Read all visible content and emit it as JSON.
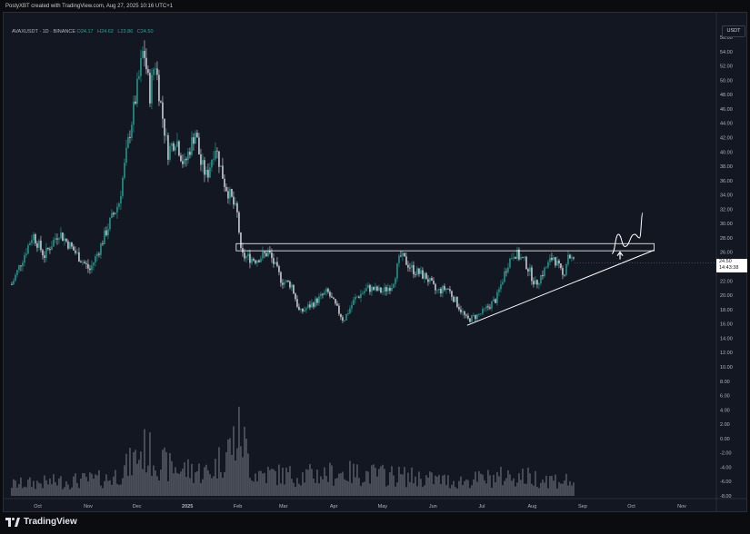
{
  "header": {
    "attribution": "PostyXBT created with TradingView.com, Aug 27, 2025 10:16 UTC+1"
  },
  "legend": {
    "symbol": "AVAXUSDT · 1D · BINANCE",
    "open_label": "O",
    "open": "24.17",
    "high_label": "H",
    "high": "24.62",
    "low_label": "L",
    "low": "23.86",
    "close_label": "C",
    "close": "24.50"
  },
  "currency": "USDT",
  "price_tag": {
    "price": "24.50",
    "countdown": "14:43:38"
  },
  "footer": {
    "brand": "TradingView"
  },
  "colors": {
    "background": "#131722",
    "up_candle": "#26a69a",
    "down_candle": "#e0e3eb",
    "volume": "#b2b5be",
    "pattern_lines": "#ffffff"
  },
  "icons": {
    "logo": "tradingview-logo-icon",
    "arrow": "up-arrow-icon",
    "projection": "breakout-projection-path"
  },
  "chart_data": {
    "type": "candlestick",
    "x_tick_labels": [
      "Oct",
      "Nov",
      "Dec",
      "2025",
      "Feb",
      "Mar",
      "Apr",
      "May",
      "Jun",
      "Jul",
      "Aug",
      "Sep",
      "Oct",
      "Nov"
    ],
    "y_tick_labels": [
      "56.00",
      "54.00",
      "52.00",
      "50.00",
      "48.00",
      "46.00",
      "44.00",
      "42.00",
      "40.00",
      "38.00",
      "36.00",
      "34.00",
      "32.00",
      "30.00",
      "28.00",
      "26.00",
      "24.00",
      "22.00",
      "20.00",
      "18.00",
      "16.00",
      "14.00",
      "12.00",
      "10.00",
      "8.00",
      "6.00",
      "4.00",
      "2.00",
      "0.00",
      "-2.00",
      "-4.00",
      "-6.00",
      "-8.00"
    ],
    "y_range": [
      -8,
      56
    ],
    "price_path": [
      [
        "2024-09-15",
        21.5
      ],
      [
        "2024-09-28",
        28.5
      ],
      [
        "2024-10-05",
        25.5
      ],
      [
        "2024-10-14",
        28.8
      ],
      [
        "2024-10-24",
        26.0
      ],
      [
        "2024-11-02",
        23.5
      ],
      [
        "2024-11-08",
        26.5
      ],
      [
        "2024-11-14",
        30.0
      ],
      [
        "2024-11-20",
        33.0
      ],
      [
        "2024-11-26",
        42.0
      ],
      [
        "2024-12-02",
        50.0
      ],
      [
        "2024-12-05",
        54.5
      ],
      [
        "2024-12-09",
        48.0
      ],
      [
        "2024-12-12",
        53.0
      ],
      [
        "2024-12-16",
        46.0
      ],
      [
        "2024-12-20",
        40.0
      ],
      [
        "2024-12-25",
        42.0
      ],
      [
        "2024-12-30",
        38.0
      ],
      [
        "2025-01-06",
        43.0
      ],
      [
        "2025-01-09",
        38.5
      ],
      [
        "2025-01-13",
        36.5
      ],
      [
        "2025-01-18",
        41.0
      ],
      [
        "2025-01-24",
        35.5
      ],
      [
        "2025-01-28",
        33.5
      ],
      [
        "2025-02-01",
        31.0
      ],
      [
        "2025-02-03",
        25.5
      ],
      [
        "2025-02-12",
        25.0
      ],
      [
        "2025-02-20",
        26.0
      ],
      [
        "2025-02-28",
        22.0
      ],
      [
        "2025-03-06",
        21.5
      ],
      [
        "2025-03-11",
        17.5
      ],
      [
        "2025-03-20",
        19.0
      ],
      [
        "2025-03-28",
        20.5
      ],
      [
        "2025-04-07",
        16.5
      ],
      [
        "2025-04-14",
        19.5
      ],
      [
        "2025-04-22",
        21.0
      ],
      [
        "2025-05-01",
        20.5
      ],
      [
        "2025-05-07",
        21.5
      ],
      [
        "2025-05-12",
        25.5
      ],
      [
        "2025-05-20",
        23.5
      ],
      [
        "2025-05-28",
        22.5
      ],
      [
        "2025-06-03",
        20.5
      ],
      [
        "2025-06-10",
        21.0
      ],
      [
        "2025-06-22",
        16.5
      ],
      [
        "2025-07-01",
        17.5
      ],
      [
        "2025-07-10",
        19.5
      ],
      [
        "2025-07-17",
        24.5
      ],
      [
        "2025-07-21",
        26.0
      ],
      [
        "2025-07-28",
        24.5
      ],
      [
        "2025-08-03",
        21.5
      ],
      [
        "2025-08-10",
        24.0
      ],
      [
        "2025-08-14",
        25.5
      ],
      [
        "2025-08-20",
        22.5
      ],
      [
        "2025-08-23",
        25.8
      ],
      [
        "2025-08-27",
        24.5
      ]
    ],
    "last_candle": {
      "date": "2025-08-27",
      "open": 24.17,
      "high": 24.62,
      "low": 23.86,
      "close": 24.5
    },
    "resistance_zone": {
      "from": "2025-01-31",
      "to": "2025-10-15",
      "upper": 27.2,
      "lower": 26.2
    },
    "support_trendline": [
      [
        "2025-06-22",
        15.8
      ],
      [
        "2025-10-15",
        26.3
      ]
    ],
    "projection_path": [
      [
        "2025-09-19",
        25.8
      ],
      [
        "2025-09-23",
        28.5
      ],
      [
        "2025-09-27",
        26.8
      ],
      [
        "2025-10-03",
        28.5
      ],
      [
        "2025-10-06",
        28.0
      ],
      [
        "2025-10-08",
        31.5
      ]
    ],
    "breakout_arrow": {
      "date": "2025-09-24",
      "level": 25.0
    },
    "volume_profile": [
      [
        "2024-09-15",
        2
      ],
      [
        "2024-10-15",
        2.5
      ],
      [
        "2024-11-15",
        3
      ],
      [
        "2024-11-25",
        5
      ],
      [
        "2024-12-05",
        8
      ],
      [
        "2024-12-20",
        5
      ],
      [
        "2025-01-15",
        4
      ],
      [
        "2025-02-03",
        11
      ],
      [
        "2025-02-10",
        4
      ],
      [
        "2025-03-10",
        3.5
      ],
      [
        "2025-04-07",
        4
      ],
      [
        "2025-05-10",
        3.5
      ],
      [
        "2025-06-15",
        2.5
      ],
      [
        "2025-07-20",
        3.5
      ],
      [
        "2025-08-27",
        2.5
      ]
    ]
  }
}
